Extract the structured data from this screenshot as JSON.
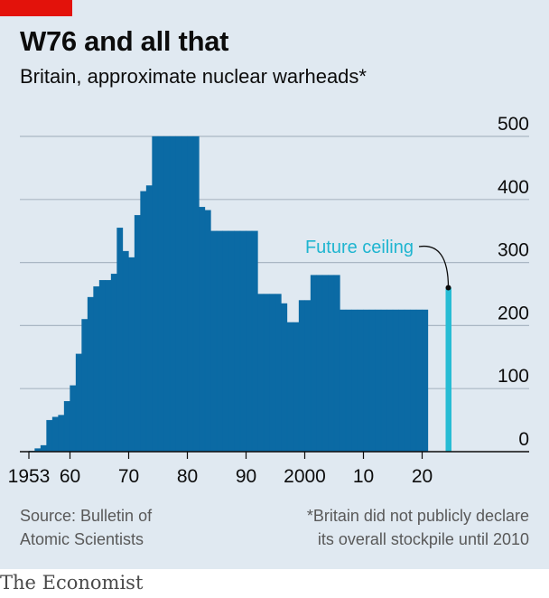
{
  "header": {
    "title": "W76 and all that",
    "subtitle": "Britain, approximate nuclear warheads*"
  },
  "footer": {
    "source_line1": "Source: Bulletin of",
    "source_line2": "Atomic Scientists",
    "note_line1": "*Britain did not publicly declare",
    "note_line2": "its overall stockpile until 2010",
    "brand": "The Economist"
  },
  "colors": {
    "background": "#e0e9f1",
    "bars": "#0b6aa4",
    "future": "#27bcd4",
    "accent": "#e3120b",
    "grid": "#aab7c4"
  },
  "chart_data": {
    "type": "bar",
    "x_start": 1953,
    "years": [
      1953,
      1954,
      1955,
      1956,
      1957,
      1958,
      1959,
      1960,
      1961,
      1962,
      1963,
      1964,
      1965,
      1966,
      1967,
      1968,
      1969,
      1970,
      1971,
      1972,
      1973,
      1974,
      1975,
      1976,
      1977,
      1978,
      1979,
      1980,
      1981,
      1982,
      1983,
      1984,
      1985,
      1986,
      1987,
      1988,
      1989,
      1990,
      1991,
      1992,
      1993,
      1994,
      1995,
      1996,
      1997,
      1998,
      1999,
      2000,
      2001,
      2002,
      2003,
      2004,
      2005,
      2006,
      2007,
      2008,
      2009,
      2010,
      2011,
      2012,
      2013,
      2014,
      2015,
      2016,
      2017,
      2018,
      2019,
      2020
    ],
    "values": [
      1,
      5,
      10,
      50,
      55,
      58,
      80,
      105,
      155,
      210,
      245,
      262,
      272,
      272,
      282,
      355,
      318,
      308,
      375,
      413,
      422,
      500,
      500,
      500,
      500,
      500,
      500,
      500,
      500,
      388,
      383,
      350,
      350,
      350,
      350,
      350,
      350,
      350,
      350,
      250,
      250,
      250,
      250,
      235,
      205,
      205,
      240,
      240,
      280,
      280,
      280,
      280,
      280,
      225,
      225,
      225,
      225,
      225,
      225,
      225,
      225,
      225,
      225,
      225,
      225,
      225,
      225,
      225
    ],
    "future_ceiling": {
      "year": 2024,
      "value": 260,
      "label": "Future ceiling"
    },
    "ylim": [
      0,
      500
    ],
    "yticks": [
      0,
      100,
      200,
      300,
      400,
      500
    ],
    "xtick_labels": [
      {
        "year": 1953,
        "label": "1953"
      },
      {
        "year": 1960,
        "label": "60"
      },
      {
        "year": 1970,
        "label": "70"
      },
      {
        "year": 1980,
        "label": "80"
      },
      {
        "year": 1990,
        "label": "90"
      },
      {
        "year": 2000,
        "label": "2000"
      },
      {
        "year": 2010,
        "label": "10"
      },
      {
        "year": 2020,
        "label": "20"
      }
    ],
    "grid": true,
    "y_axis_position": "right"
  }
}
